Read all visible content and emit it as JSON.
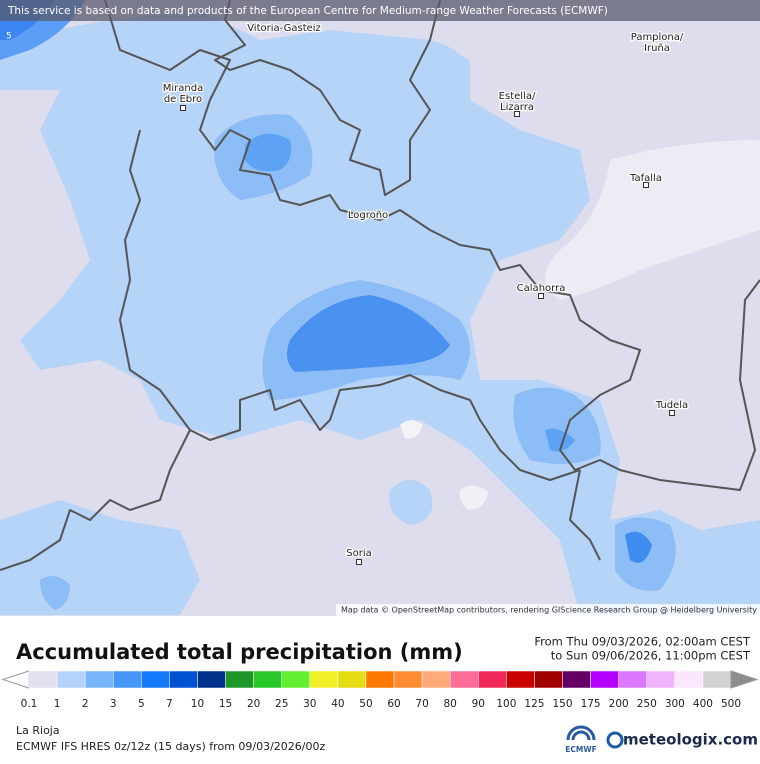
{
  "map": {
    "attribution_top": "This service is based on data and products of the European Centre for Medium-range Weather Forecasts (ECMWF)",
    "attribution_bottom": "Map data © OpenStreetMap contributors, rendering GIScience Research Group @ Heidelberg University",
    "contour_label": "5",
    "places": [
      {
        "lines": [
          "Vitoria-Gasteiz"
        ]
      },
      {
        "lines": [
          "Pamplona/",
          "Iruña"
        ]
      },
      {
        "lines": [
          "Miranda",
          "de Ebro"
        ]
      },
      {
        "lines": [
          "Estella/",
          "Lizarra"
        ]
      },
      {
        "lines": [
          "Tafalla"
        ]
      },
      {
        "lines": [
          "Logroño"
        ]
      },
      {
        "lines": [
          "Calahorra"
        ]
      },
      {
        "lines": [
          "Tudela"
        ]
      },
      {
        "lines": [
          "Soria"
        ]
      }
    ]
  },
  "legend": {
    "title": "Accumulated total precipitation (mm)",
    "from": "From Thu 09/03/2026, 02:00am CEST",
    "to": "to Sun 09/06/2026, 11:00pm CEST",
    "labels": [
      0.1,
      1,
      2,
      3,
      5,
      7,
      10,
      15,
      20,
      25,
      30,
      40,
      50,
      60,
      70,
      80,
      90,
      100,
      125,
      150,
      175,
      200,
      250,
      300,
      400,
      500
    ],
    "colors": [
      "#ffffff",
      "#e1e1f0",
      "#b4d2fa",
      "#78b4fa",
      "#4696fa",
      "#1478fa",
      "#0050d2",
      "#00328c",
      "#1e9628",
      "#28c828",
      "#64f032",
      "#f0f028",
      "#e6dc14",
      "#ff7800",
      "#ff8c32",
      "#ffaa78",
      "#ff6e96",
      "#f0285a",
      "#c80000",
      "#a00000",
      "#640064",
      "#b400ff",
      "#dc78ff",
      "#f0b4ff",
      "#fae6ff",
      "#d2d2d2",
      "#8c8c8c"
    ]
  },
  "footer": {
    "region": "La Rioja",
    "model": "ECMWF IFS HRES 0z/12z (15 days) from  09/03/2026/00z",
    "ecmwf_logo": "ECMWF",
    "brand": "meteologix.com"
  }
}
